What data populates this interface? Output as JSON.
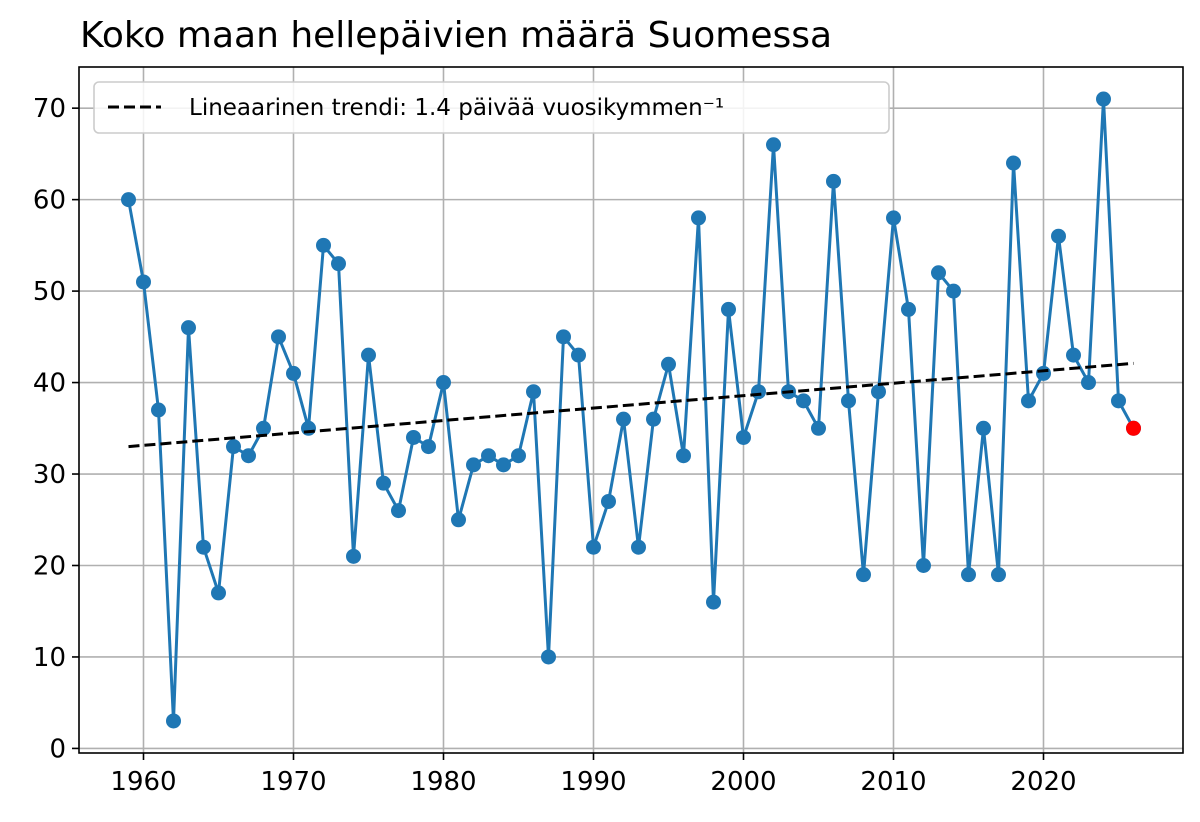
{
  "chart_data": {
    "type": "line",
    "title": "Koko maan hellepäivien määrä Suomessa",
    "xlabel": "",
    "ylabel": "",
    "xlim": [
      1955.7,
      2029.3
    ],
    "ylim": [
      -0.5,
      74.5
    ],
    "xticks": [
      1960,
      1970,
      1980,
      1990,
      2000,
      2010,
      2020
    ],
    "yticks": [
      0,
      10,
      20,
      30,
      40,
      50,
      60,
      70
    ],
    "grid": true,
    "legend_position": "top-left",
    "series": [
      {
        "color": "#1f77b4",
        "marker": "circle",
        "x": [
          1959,
          1960,
          1961,
          1962,
          1963,
          1964,
          1965,
          1966,
          1967,
          1968,
          1969,
          1970,
          1971,
          1972,
          1973,
          1974,
          1975,
          1976,
          1977,
          1978,
          1979,
          1980,
          1981,
          1982,
          1983,
          1984,
          1985,
          1986,
          1987,
          1988,
          1989,
          1990,
          1991,
          1992,
          1993,
          1994,
          1995,
          1996,
          1997,
          1998,
          1999,
          2000,
          2001,
          2002,
          2003,
          2004,
          2005,
          2006,
          2007,
          2008,
          2009,
          2010,
          2011,
          2012,
          2013,
          2014,
          2015,
          2016,
          2017,
          2018,
          2019,
          2020,
          2021,
          2022,
          2023,
          2024,
          2025,
          2026
        ],
        "y": [
          60,
          51,
          37,
          3,
          46,
          22,
          17,
          33,
          32,
          35,
          45,
          41,
          35,
          55,
          53,
          21,
          43,
          29,
          26,
          34,
          33,
          40,
          25,
          31,
          32,
          31,
          32,
          39,
          10,
          45,
          43,
          22,
          27,
          36,
          22,
          36,
          42,
          32,
          58,
          16,
          48,
          34,
          39,
          66,
          39,
          38,
          35,
          62,
          38,
          19,
          39,
          58,
          48,
          20,
          52,
          50,
          19,
          35,
          19,
          64,
          38,
          41,
          56,
          43,
          40,
          71,
          38,
          35
        ]
      },
      {
        "name": "Lineaarinen trendi: 1.4 päivää vuosikymmen⁻¹",
        "color": "#000000",
        "style": "dashed",
        "x": [
          1959,
          2026
        ],
        "y": [
          33.0,
          42.1
        ]
      }
    ],
    "highlight": {
      "x": 2026,
      "y": 35,
      "color": "#ff0000"
    }
  }
}
